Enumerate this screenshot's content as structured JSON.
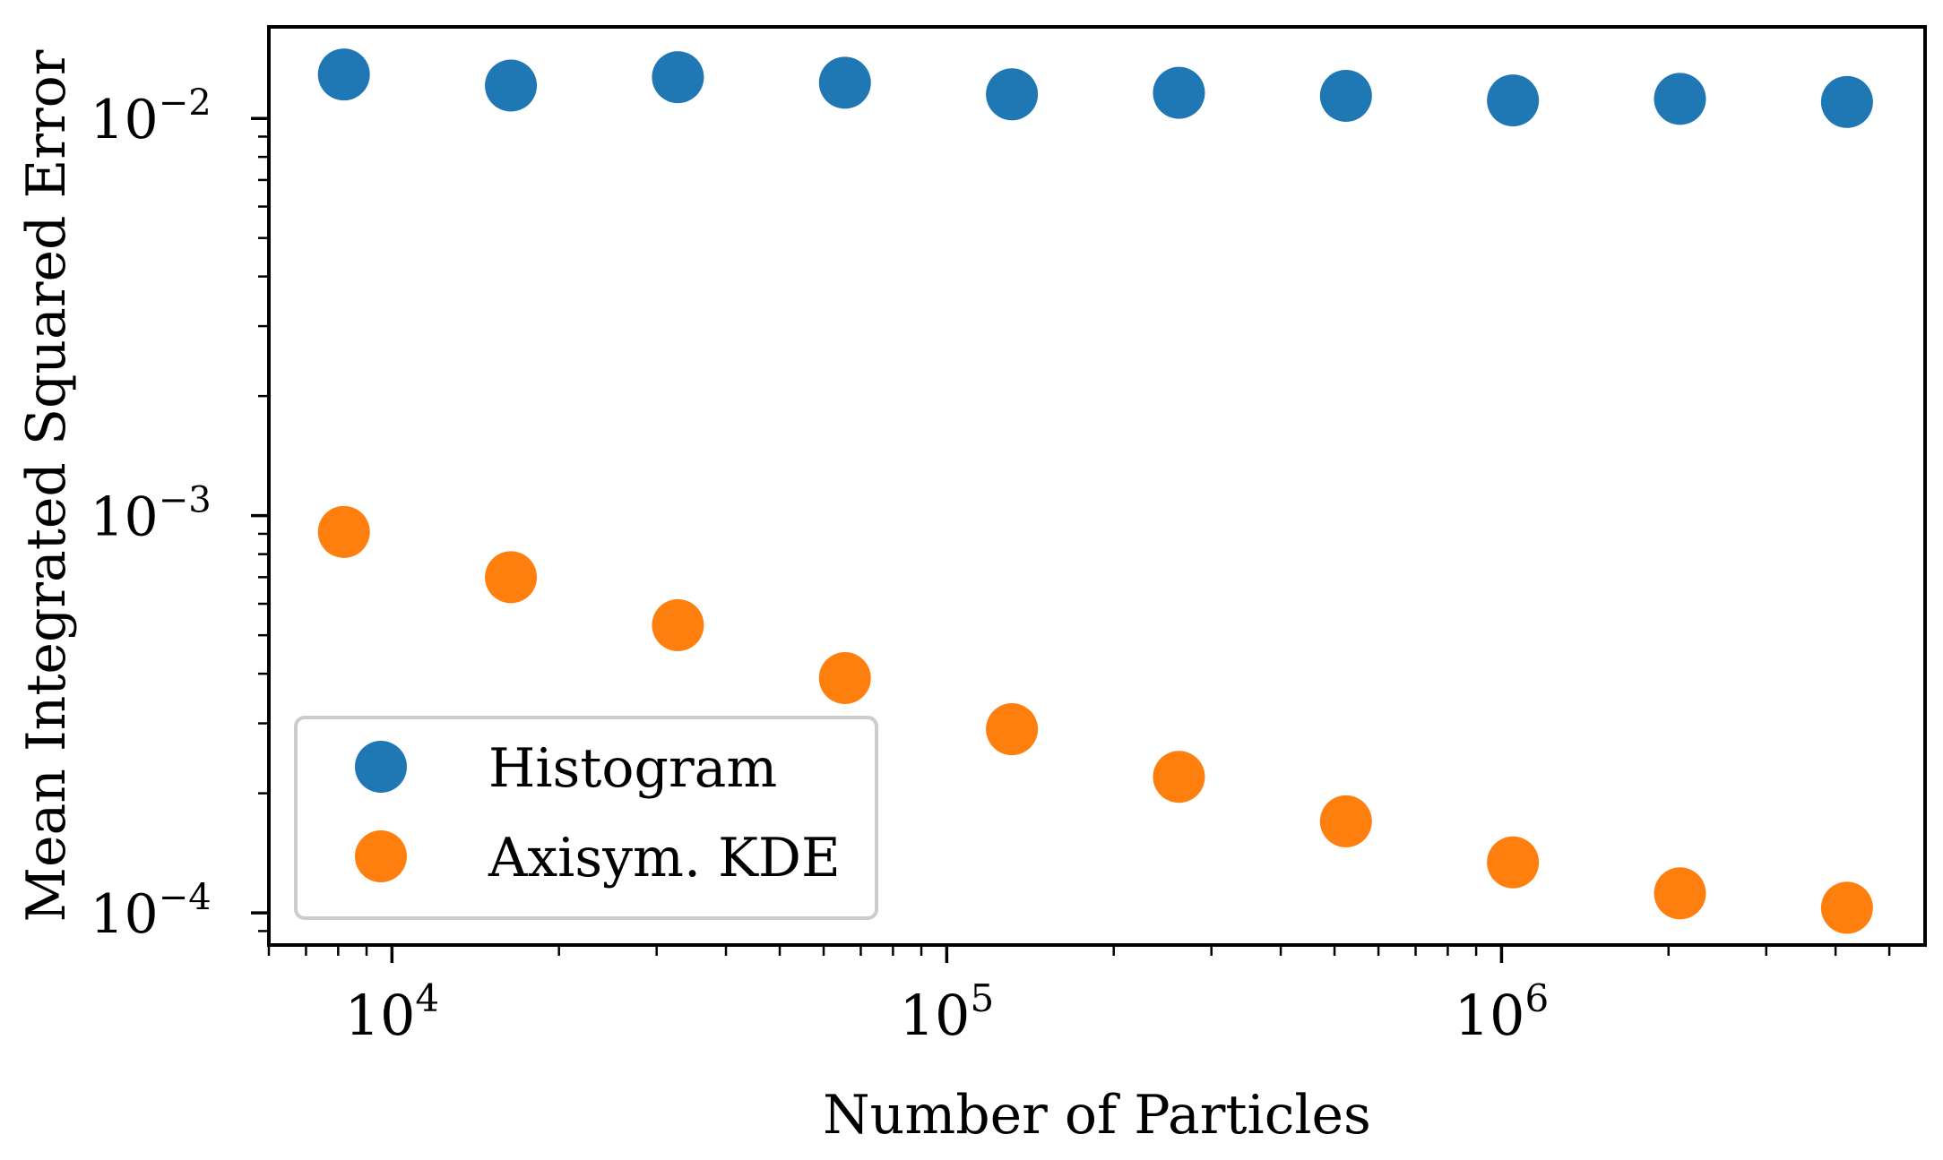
{
  "chart_data": {
    "type": "scatter",
    "title": "",
    "xlabel": "Number of Particles",
    "ylabel": "Mean Integrated Squared Error",
    "xscale": "log",
    "yscale": "log",
    "xlim": [
      6000,
      5800000
    ],
    "ylim": [
      8.3e-05,
      0.017
    ],
    "x_ticks": [
      {
        "value": 10000,
        "base": "10",
        "exp": "4"
      },
      {
        "value": 100000,
        "base": "10",
        "exp": "5"
      },
      {
        "value": 1000000,
        "base": "10",
        "exp": "6"
      }
    ],
    "y_ticks": [
      {
        "value": 0.0001,
        "base": "10",
        "exp": "−4"
      },
      {
        "value": 0.001,
        "base": "10",
        "exp": "−3"
      },
      {
        "value": 0.01,
        "base": "10",
        "exp": "−2"
      }
    ],
    "grid": false,
    "legend_position": "lower-left",
    "x": [
      8192,
      16384,
      32768,
      65536,
      131072,
      262144,
      524288,
      1048576,
      2097152,
      4194304
    ],
    "series": [
      {
        "name": "Histogram",
        "color": "#1f77b4",
        "values": [
          0.0129,
          0.0121,
          0.0127,
          0.0123,
          0.0115,
          0.0116,
          0.0114,
          0.0111,
          0.0112,
          0.011
        ]
      },
      {
        "name": "Axisym. KDE",
        "color": "#ff7f0e",
        "values": [
          0.00091,
          0.0007,
          0.00053,
          0.00039,
          0.00029,
          0.00022,
          0.00017,
          0.000134,
          0.000112,
          0.000103
        ]
      }
    ]
  }
}
